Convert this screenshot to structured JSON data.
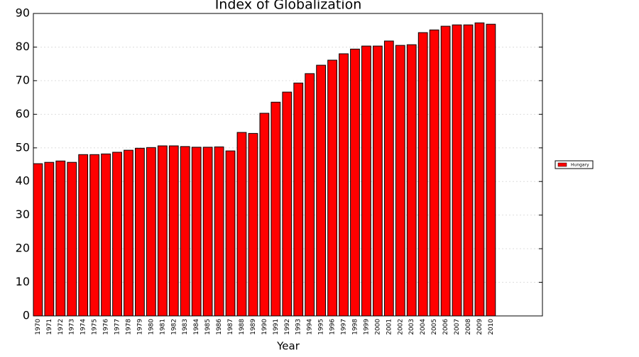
{
  "chart_data": {
    "type": "bar",
    "title": "Index of Globalization",
    "xlabel": "Year",
    "categories": [
      "1970",
      "1971",
      "1972",
      "1973",
      "1974",
      "1975",
      "1976",
      "1977",
      "1978",
      "1979",
      "1980",
      "1981",
      "1982",
      "1983",
      "1984",
      "1985",
      "1986",
      "1987",
      "1988",
      "1989",
      "1990",
      "1991",
      "1992",
      "1993",
      "1994",
      "1995",
      "1996",
      "1997",
      "1998",
      "1999",
      "2000",
      "2001",
      "2002",
      "2003",
      "2004",
      "2005",
      "2006",
      "2007",
      "2008",
      "2009",
      "2010"
    ],
    "series": [
      {
        "name": "Hungary",
        "color": "#ff0000",
        "values": [
          45.3,
          45.7,
          46.1,
          45.7,
          48.0,
          48.0,
          48.2,
          48.7,
          49.3,
          49.9,
          50.1,
          50.6,
          50.6,
          50.4,
          50.2,
          50.2,
          50.3,
          49.1,
          54.6,
          54.3,
          60.3,
          63.6,
          66.6,
          69.3,
          72.1,
          74.6,
          76.1,
          78.0,
          79.4,
          80.3,
          80.3,
          81.8,
          80.5,
          80.7,
          84.3,
          85.1,
          86.2,
          86.6,
          86.6,
          87.2,
          86.8
        ]
      }
    ],
    "ylim": [
      0,
      90
    ],
    "yticks": [
      0,
      10,
      20,
      30,
      40,
      50,
      60,
      70,
      80,
      90
    ],
    "grid": true,
    "legend": "right"
  }
}
